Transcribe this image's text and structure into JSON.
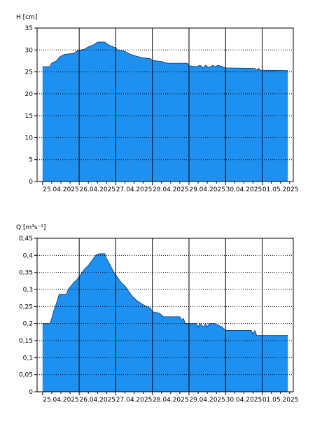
{
  "colors": {
    "fill": "#1e90ef",
    "stroke": "#0a2f78",
    "grid": "#000000",
    "background": "#ffffff"
  },
  "chart_data": [
    {
      "type": "area",
      "ylabel": "H [cm]",
      "xlabel": "",
      "title": "",
      "ylim": [
        0,
        35
      ],
      "yticks": [
        0,
        5,
        10,
        15,
        20,
        25,
        30,
        35
      ],
      "ytick_labels": [
        "0",
        "5",
        "10",
        "15",
        "20",
        "25",
        "30",
        "35"
      ],
      "x_dates": [
        "25.04.2025",
        "26.04.2025",
        "27.04.2025",
        "28.04.2025",
        "29.04.2025",
        "30.04.2025",
        "01.05.2025"
      ],
      "x_range_days": [
        -0.15,
        6.85
      ],
      "grid": true,
      "points": [
        [
          0.0,
          26.2
        ],
        [
          0.2,
          26.2
        ],
        [
          0.25,
          27.0
        ],
        [
          0.38,
          27.5
        ],
        [
          0.48,
          28.5
        ],
        [
          0.6,
          29.0
        ],
        [
          0.85,
          29.2
        ],
        [
          0.95,
          29.8
        ],
        [
          1.15,
          30.2
        ],
        [
          1.25,
          30.7
        ],
        [
          1.4,
          31.2
        ],
        [
          1.5,
          31.8
        ],
        [
          1.7,
          31.8
        ],
        [
          1.8,
          31.2
        ],
        [
          1.9,
          30.8
        ],
        [
          2.0,
          30.5
        ],
        [
          2.05,
          30.0
        ],
        [
          2.25,
          29.7
        ],
        [
          2.35,
          29.2
        ],
        [
          2.45,
          28.9
        ],
        [
          2.6,
          28.5
        ],
        [
          2.75,
          28.2
        ],
        [
          2.95,
          28.0
        ],
        [
          3.0,
          27.6
        ],
        [
          3.25,
          27.4
        ],
        [
          3.4,
          27.0
        ],
        [
          3.95,
          27.0
        ],
        [
          4.0,
          26.4
        ],
        [
          4.2,
          26.2
        ],
        [
          4.3,
          26.5
        ],
        [
          4.4,
          25.9
        ],
        [
          4.45,
          26.5
        ],
        [
          4.55,
          26.0
        ],
        [
          4.65,
          26.5
        ],
        [
          4.7,
          26.2
        ],
        [
          4.8,
          26.5
        ],
        [
          5.0,
          25.9
        ],
        [
          5.8,
          25.8
        ],
        [
          5.85,
          25.4
        ],
        [
          5.9,
          25.8
        ],
        [
          5.95,
          25.4
        ],
        [
          6.7,
          25.3
        ]
      ],
      "x_units": "days after 25.04.2025 00:00"
    },
    {
      "type": "area",
      "ylabel": "Q [m³s⁻¹]",
      "xlabel": "",
      "title": "",
      "ylim": [
        0,
        0.45
      ],
      "yticks": [
        0,
        0.05,
        0.1,
        0.15,
        0.2,
        0.25,
        0.3,
        0.35,
        0.4,
        0.45
      ],
      "ytick_labels": [
        "0",
        "0,05",
        "0,1",
        "0,15",
        "0,2",
        "0,25",
        "0,3",
        "0,35",
        "0,4",
        "0,45"
      ],
      "x_dates": [
        "25.04.2025",
        "26.04.2025",
        "27.04.2025",
        "28.04.2025",
        "29.04.2025",
        "30.04.2025",
        "01.05.2025"
      ],
      "x_range_days": [
        -0.15,
        6.85
      ],
      "grid": true,
      "points": [
        [
          0.0,
          0.2
        ],
        [
          0.2,
          0.2
        ],
        [
          0.25,
          0.215
        ],
        [
          0.3,
          0.235
        ],
        [
          0.38,
          0.26
        ],
        [
          0.45,
          0.285
        ],
        [
          0.65,
          0.285
        ],
        [
          0.7,
          0.3
        ],
        [
          0.85,
          0.32
        ],
        [
          0.95,
          0.33
        ],
        [
          1.05,
          0.345
        ],
        [
          1.15,
          0.36
        ],
        [
          1.25,
          0.37
        ],
        [
          1.35,
          0.385
        ],
        [
          1.45,
          0.4
        ],
        [
          1.55,
          0.405
        ],
        [
          1.7,
          0.405
        ],
        [
          1.75,
          0.39
        ],
        [
          1.85,
          0.37
        ],
        [
          1.95,
          0.35
        ],
        [
          2.05,
          0.335
        ],
        [
          2.15,
          0.32
        ],
        [
          2.25,
          0.31
        ],
        [
          2.35,
          0.295
        ],
        [
          2.45,
          0.28
        ],
        [
          2.6,
          0.265
        ],
        [
          2.75,
          0.255
        ],
        [
          2.95,
          0.245
        ],
        [
          3.0,
          0.235
        ],
        [
          3.2,
          0.23
        ],
        [
          3.3,
          0.22
        ],
        [
          3.75,
          0.22
        ],
        [
          3.8,
          0.21
        ],
        [
          3.85,
          0.215
        ],
        [
          3.9,
          0.2
        ],
        [
          4.2,
          0.2
        ],
        [
          4.25,
          0.19
        ],
        [
          4.3,
          0.2
        ],
        [
          4.4,
          0.19
        ],
        [
          4.45,
          0.2
        ],
        [
          4.5,
          0.19
        ],
        [
          4.55,
          0.2
        ],
        [
          4.7,
          0.2
        ],
        [
          4.9,
          0.19
        ],
        [
          5.0,
          0.18
        ],
        [
          5.7,
          0.18
        ],
        [
          5.75,
          0.17
        ],
        [
          5.8,
          0.18
        ],
        [
          5.85,
          0.165
        ],
        [
          6.7,
          0.165
        ]
      ],
      "x_units": "days after 25.04.2025 00:00"
    }
  ]
}
